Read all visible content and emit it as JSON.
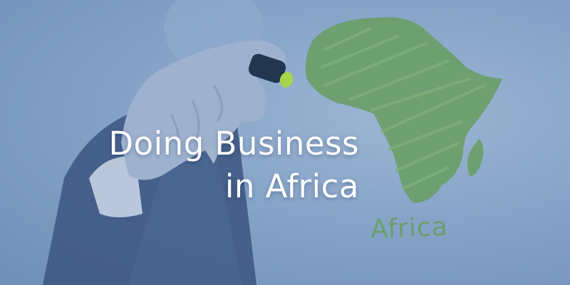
{
  "headline": {
    "line1": "Doing Business",
    "line2": "in Africa"
  },
  "map_label": "Africa",
  "colors": {
    "background": "#86a4c8",
    "suit": "#3b5580",
    "hand": "#9eb2cf",
    "marker_body": "#22364f",
    "marker_tip": "#a8d64a",
    "map_fill": "#6a9e68",
    "headline_text": "#ffffff"
  },
  "icons": {
    "pen": "marker-icon",
    "map": "africa-map-icon"
  }
}
